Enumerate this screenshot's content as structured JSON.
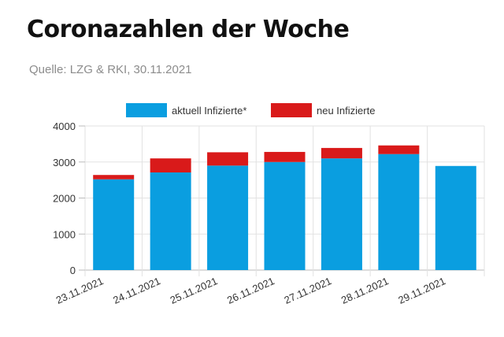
{
  "header": {
    "title": "Coronazahlen der Woche",
    "source": "Quelle: LZG & RKI, 30.11.2021"
  },
  "colors": {
    "current": "#0a9ee0",
    "new": "#d91a1a",
    "grid": "#e2e2e2",
    "axis": "#bbbbbb"
  },
  "chart_data": {
    "type": "bar",
    "stacked": true,
    "categories": [
      "23.11.2021",
      "24.11.2021",
      "25.11.2021",
      "26.11.2021",
      "27.11.2021",
      "28.11.2021",
      "29.11.2021"
    ],
    "series": [
      {
        "name": "aktuell Infizierte*",
        "color": "#0a9ee0",
        "values": [
          2520,
          2710,
          2900,
          3000,
          3100,
          3220,
          2890
        ]
      },
      {
        "name": "neu Infizierte",
        "color": "#d91a1a",
        "values": [
          120,
          390,
          370,
          280,
          290,
          240,
          0
        ]
      }
    ],
    "yticks": [
      "0",
      "1000",
      "2000",
      "3000",
      "4000"
    ],
    "ylim": [
      0,
      4000
    ],
    "grid": true,
    "legend": "top-center"
  }
}
